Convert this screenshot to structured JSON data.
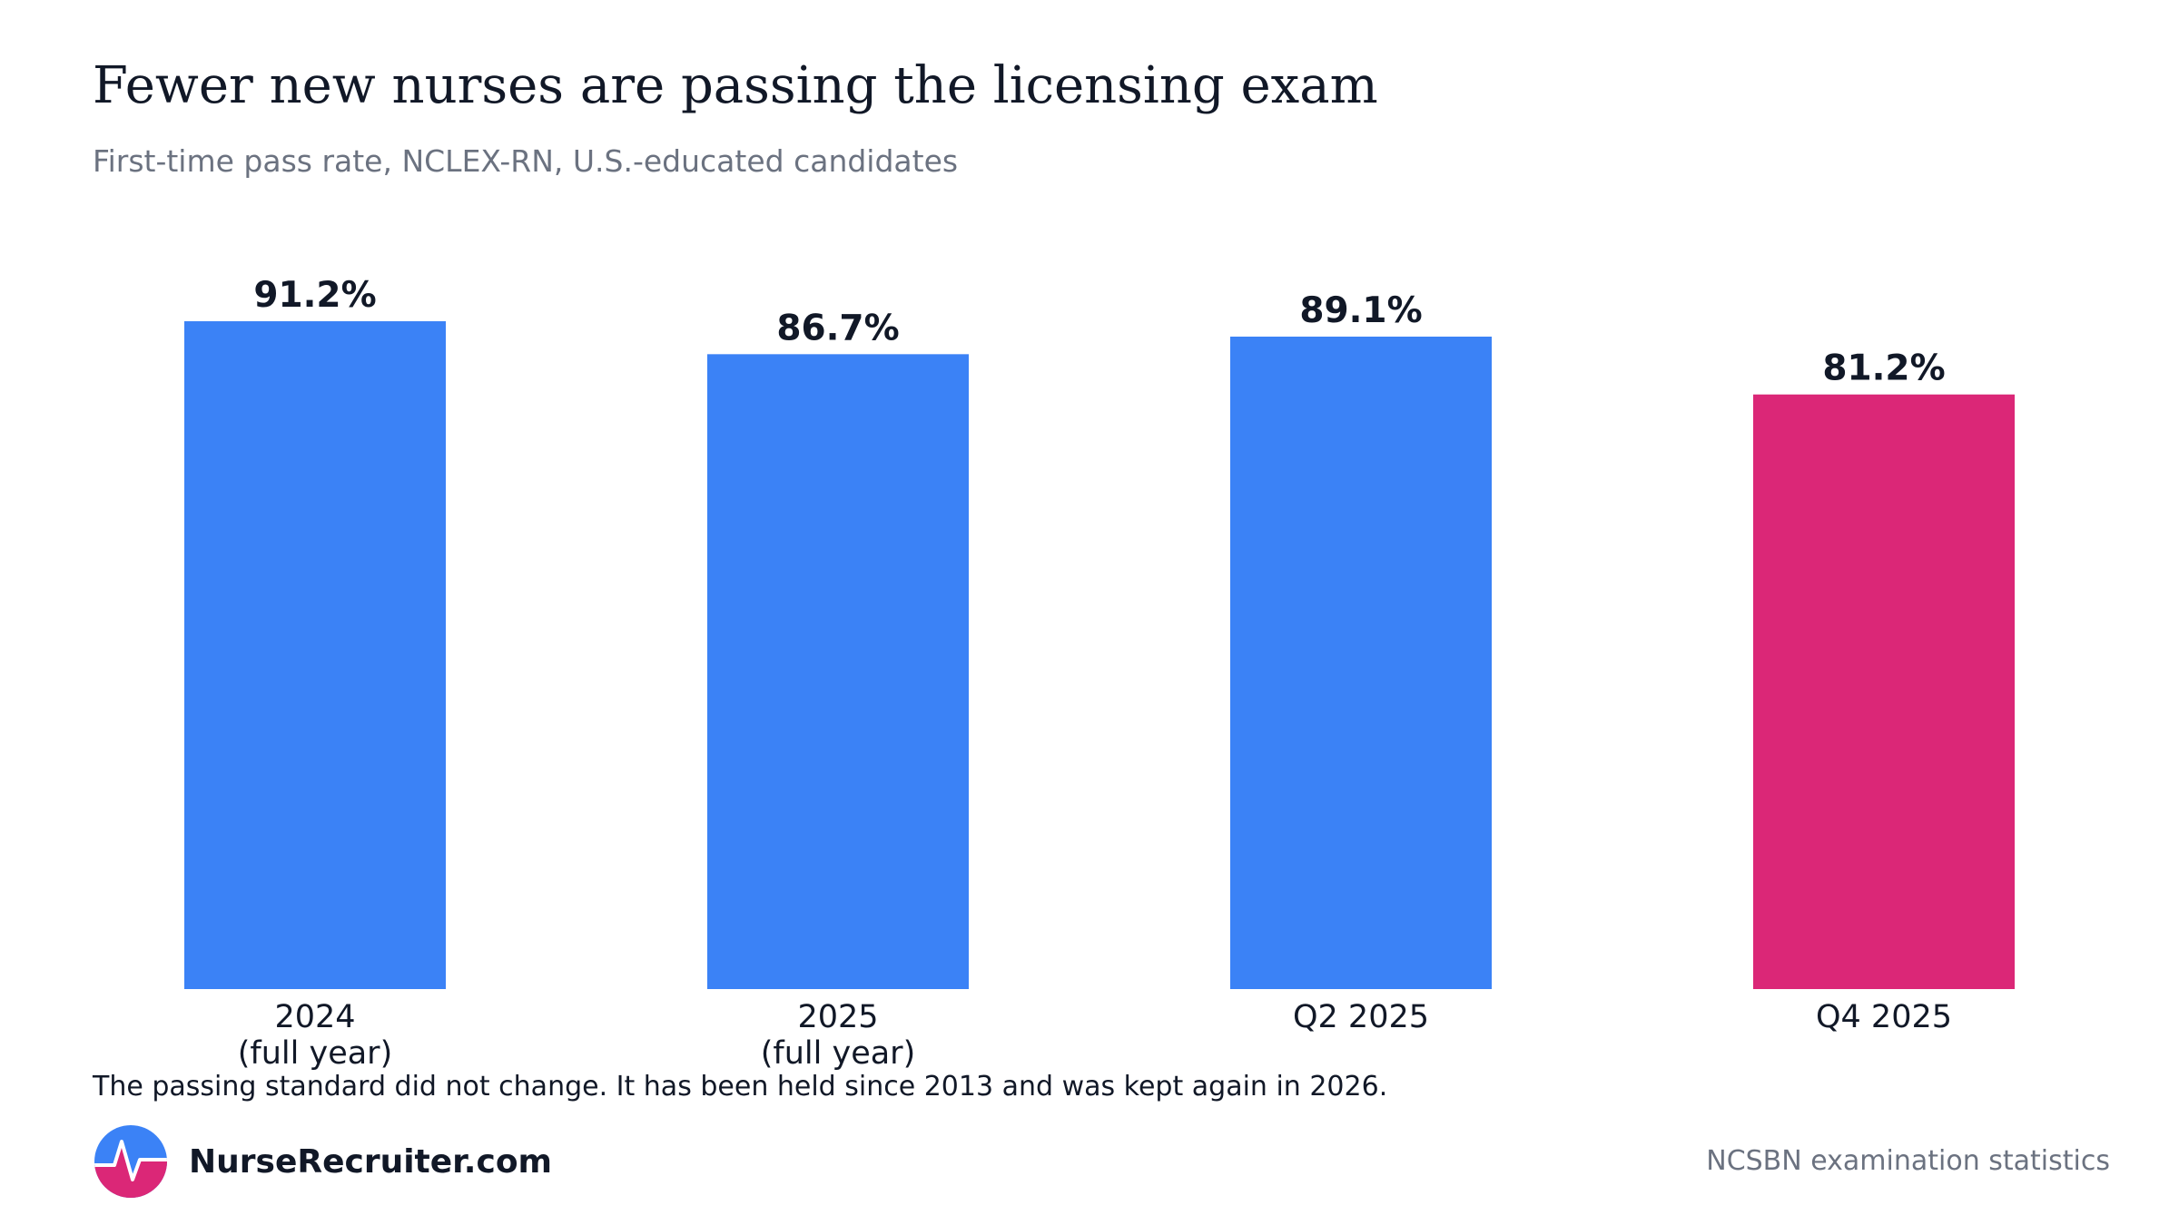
{
  "header": {
    "title": "Fewer new nurses are passing the licensing exam",
    "subtitle": "First-time pass rate, NCLEX-RN, U.S.-educated candidates"
  },
  "chart_data": {
    "type": "bar",
    "categories": [
      [
        "2024",
        "(full year)"
      ],
      [
        "2025",
        "(full year)"
      ],
      [
        "Q2 2025"
      ],
      [
        "Q4 2025"
      ]
    ],
    "values": [
      91.2,
      86.7,
      89.1,
      81.2
    ],
    "value_labels": [
      "91.2%",
      "86.7%",
      "89.1%",
      "81.2%"
    ],
    "colors": [
      "#3b82f6",
      "#3b82f6",
      "#3b82f6",
      "#db2777"
    ],
    "ylim": [
      0,
      100
    ],
    "grid": false,
    "legend": "none"
  },
  "footer": {
    "note": "The passing standard did not change. It has been held since 2013 and was kept again in 2026.",
    "brand_name": "NurseRecruiter.com",
    "brand_icon": "heartbeat-logo-icon",
    "brand_colors": [
      "#3b82f6",
      "#db2777"
    ],
    "source": "NCSBN examination statistics"
  }
}
